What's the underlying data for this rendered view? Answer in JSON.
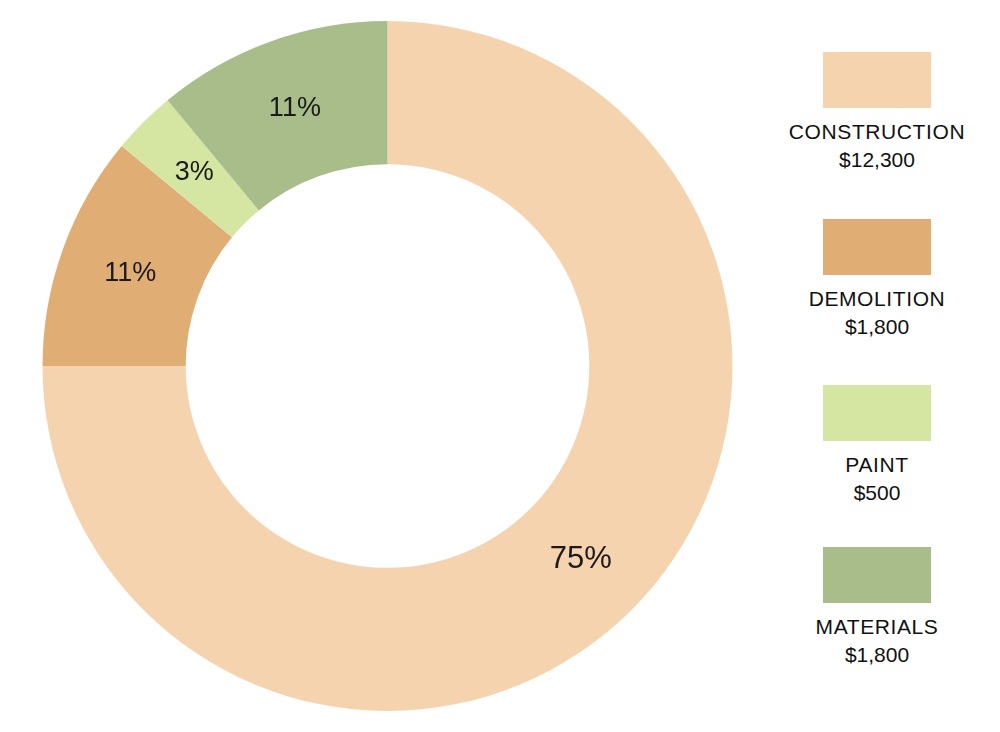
{
  "chart_data": {
    "type": "doughnut",
    "categories": [
      "CONSTRUCTION",
      "DEMOLITION",
      "PAINT",
      "MATERIALS"
    ],
    "values": [
      75,
      11,
      3,
      11
    ],
    "value_labels": [
      "75%",
      "11%",
      "3%",
      "11%"
    ],
    "amounts": [
      12300,
      1800,
      500,
      1800
    ],
    "amount_labels": [
      "$12,300",
      "$1,800",
      "$500",
      "$1,800"
    ],
    "colors": [
      "#f4d3ae",
      "#e0ae74",
      "#d5e6a3",
      "#a8bd8a"
    ],
    "data_labels": true,
    "legend": "right"
  }
}
